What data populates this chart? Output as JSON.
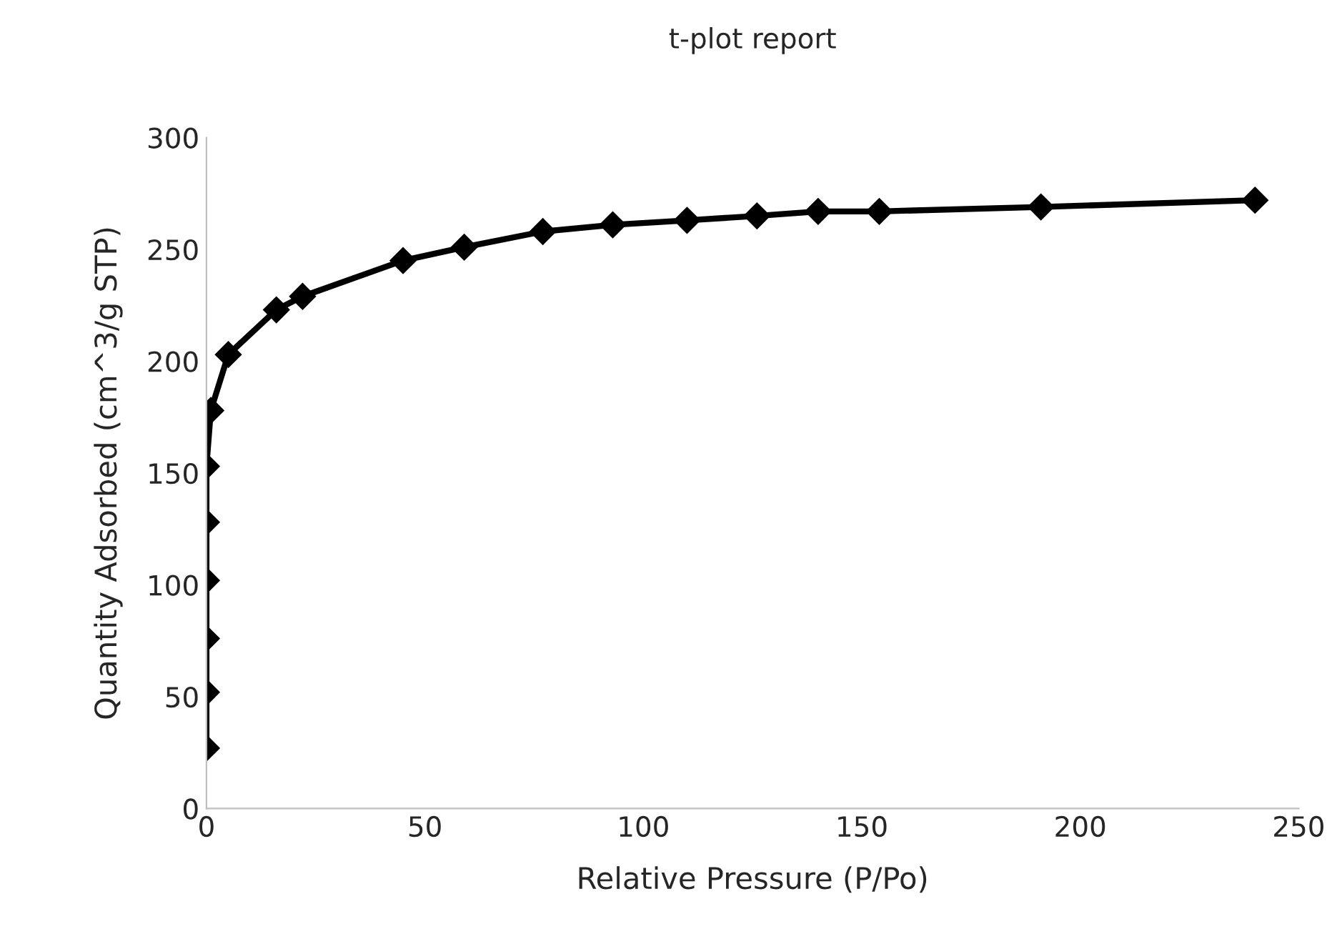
{
  "chart_data": {
    "type": "line",
    "title": "t-plot report",
    "xlabel": "Relative Pressure (P/Po)",
    "ylabel": "Quantity Adsorbed (cm^3/g STP)",
    "x": [
      0,
      0,
      0,
      0,
      0,
      0,
      1,
      5,
      16,
      22,
      45,
      59,
      77,
      93,
      110,
      126,
      140,
      154,
      191,
      240
    ],
    "series": [
      {
        "color": "#000000",
        "values": [
          27,
          52,
          76,
          102,
          128,
          153,
          178,
          203,
          223,
          229,
          245,
          251,
          258,
          261,
          263,
          265,
          267,
          267,
          269,
          272
        ]
      }
    ],
    "xlim": [
      0,
      250
    ],
    "xticks": [
      0,
      50,
      100,
      150,
      200,
      250
    ],
    "ylim": [
      0,
      300
    ],
    "yticks": [
      0,
      50,
      100,
      150,
      200,
      250,
      300
    ],
    "marker": "diamond",
    "line_style": "solid",
    "grid": false,
    "legend": false
  }
}
